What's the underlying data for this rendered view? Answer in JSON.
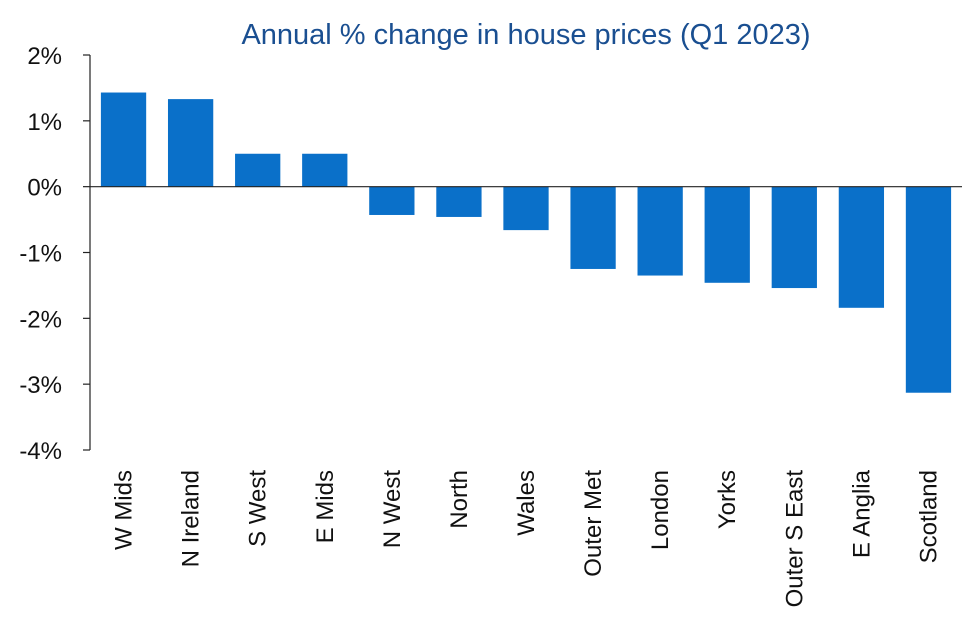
{
  "chart_data": {
    "type": "bar",
    "title": "Annual % change in house prices (Q1 2023)",
    "xlabel": "",
    "ylabel": "",
    "categories": [
      "W Mids",
      "N Ireland",
      "S West",
      "E Mids",
      "N West",
      "North",
      "Wales",
      "Outer Met",
      "London",
      "Yorks",
      "Outer S East",
      "E Anglia",
      "Scotland"
    ],
    "values": [
      1.43,
      1.33,
      0.5,
      0.5,
      -0.43,
      -0.46,
      -0.66,
      -1.25,
      -1.35,
      -1.46,
      -1.54,
      -1.84,
      -3.13
    ],
    "ylim": [
      -4,
      2
    ],
    "yticks": [
      2,
      1,
      0,
      -1,
      -2,
      -3,
      -4
    ],
    "ytick_labels": [
      "2%",
      "1%",
      "0%",
      "-1%",
      "-2%",
      "-3%",
      "-4%"
    ],
    "grid": false,
    "bar_color": "#0a70c9"
  }
}
